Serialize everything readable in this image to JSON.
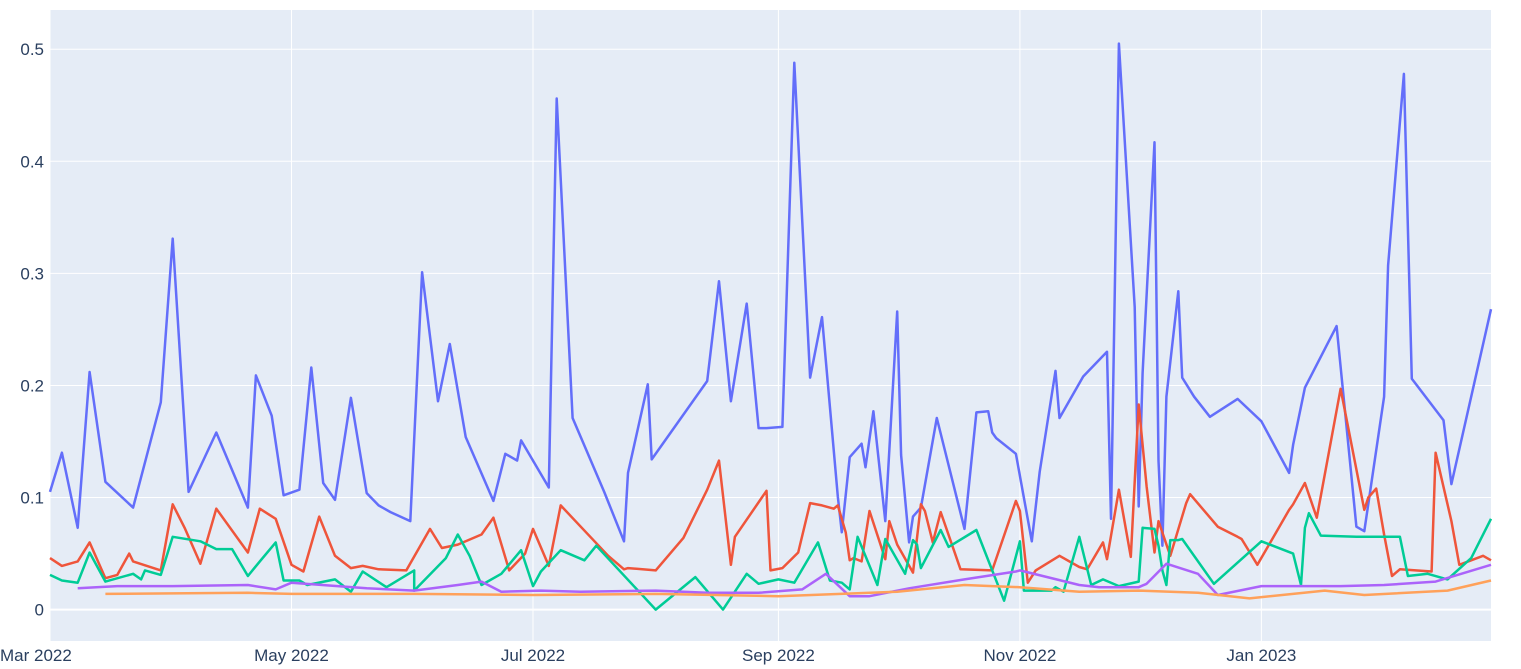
{
  "chart_data": {
    "type": "line",
    "title": "",
    "xlabel": "",
    "ylabel": "",
    "xlim": [
      "2022-03-01",
      "2023-02-28"
    ],
    "ylim": [
      -0.028,
      0.535
    ],
    "grid": true,
    "background": "#e5ecf6",
    "x_ticks": [
      "2022-03-01",
      "2022-05-01",
      "2022-07-01",
      "2022-09-01",
      "2022-11-01",
      "2023-01-01"
    ],
    "x_tick_labels": [
      "Mar 2022",
      "May 2022",
      "Jul 2022",
      "Sep 2022",
      "Nov 2022",
      "Jan 2023"
    ],
    "y_ticks": [
      0,
      0.1,
      0.2,
      0.3,
      0.4,
      0.5
    ],
    "y_tick_labels": [
      "0",
      "0.1",
      "0.2",
      "0.3",
      "0.4",
      "0.5"
    ],
    "series": [
      {
        "color": "#636efa",
        "x": [
          "2022-03-01",
          "2022-03-04",
          "2022-03-08",
          "2022-03-11",
          "2022-03-15",
          "2022-03-22",
          "2022-03-29",
          "2022-04-01",
          "2022-04-05",
          "2022-04-12",
          "2022-04-20",
          "2022-04-22",
          "2022-04-26",
          "2022-04-29",
          "2022-05-03",
          "2022-05-06",
          "2022-05-09",
          "2022-05-12",
          "2022-05-16",
          "2022-05-20",
          "2022-05-23",
          "2022-05-26",
          "2022-05-31",
          "2022-06-03",
          "2022-06-07",
          "2022-06-10",
          "2022-06-14",
          "2022-06-21",
          "2022-06-24",
          "2022-06-27",
          "2022-06-28",
          "2022-07-05",
          "2022-07-07",
          "2022-07-11",
          "2022-07-19",
          "2022-07-24",
          "2022-07-25",
          "2022-07-30",
          "2022-07-31",
          "2022-08-14",
          "2022-08-17",
          "2022-08-20",
          "2022-08-24",
          "2022-08-27",
          "2022-08-29",
          "2022-09-02",
          "2022-09-05",
          "2022-09-09",
          "2022-09-12",
          "2022-09-16",
          "2022-09-17",
          "2022-09-19",
          "2022-09-22",
          "2022-09-23",
          "2022-09-25",
          "2022-09-28",
          "2022-10-01",
          "2022-10-02",
          "2022-10-04",
          "2022-10-05",
          "2022-10-07",
          "2022-10-11",
          "2022-10-18",
          "2022-10-21",
          "2022-10-24",
          "2022-10-25",
          "2022-10-26",
          "2022-10-31",
          "2022-11-04",
          "2022-11-06",
          "2022-11-10",
          "2022-11-11",
          "2022-11-17",
          "2022-11-23",
          "2022-11-24",
          "2022-11-26",
          "2022-11-30",
          "2022-12-01",
          "2022-12-02",
          "2022-12-05",
          "2022-12-06",
          "2022-12-07",
          "2022-12-08",
          "2022-12-11",
          "2022-12-12",
          "2022-12-15",
          "2022-12-19",
          "2022-12-26",
          "2023-01-01",
          "2023-01-08",
          "2023-01-09",
          "2023-01-12",
          "2023-01-20",
          "2023-01-25",
          "2023-01-27",
          "2023-02-01",
          "2023-02-02",
          "2023-02-06",
          "2023-02-08",
          "2023-02-16",
          "2023-02-18",
          "2023-02-28"
        ],
        "y": [
          0.105,
          0.14,
          0.073,
          0.212,
          0.114,
          0.091,
          0.185,
          0.331,
          0.105,
          0.158,
          0.091,
          0.209,
          0.173,
          0.102,
          0.107,
          0.216,
          0.113,
          0.098,
          0.189,
          0.104,
          0.093,
          0.087,
          0.079,
          0.301,
          0.186,
          0.237,
          0.154,
          0.097,
          0.139,
          0.133,
          0.151,
          0.109,
          0.456,
          0.171,
          0.105,
          0.061,
          0.122,
          0.201,
          0.134,
          0.204,
          0.293,
          0.186,
          0.273,
          0.162,
          0.162,
          0.163,
          0.488,
          0.207,
          0.261,
          0.101,
          0.069,
          0.136,
          0.148,
          0.127,
          0.177,
          0.079,
          0.266,
          0.138,
          0.06,
          0.083,
          0.091,
          0.171,
          0.072,
          0.176,
          0.177,
          0.158,
          0.153,
          0.139,
          0.061,
          0.123,
          0.213,
          0.171,
          0.208,
          0.23,
          0.081,
          0.505,
          0.27,
          0.092,
          0.211,
          0.417,
          0.133,
          0.057,
          0.19,
          0.284,
          0.207,
          0.19,
          0.172,
          0.188,
          0.168,
          0.122,
          0.147,
          0.198,
          0.253,
          0.074,
          0.07,
          0.19,
          0.307,
          0.478,
          0.206,
          0.169,
          0.112,
          0.268
        ]
      },
      {
        "color": "#ef553b",
        "x": [
          "2022-03-01",
          "2022-03-04",
          "2022-03-08",
          "2022-03-11",
          "2022-03-15",
          "2022-03-18",
          "2022-03-21",
          "2022-03-22",
          "2022-03-29",
          "2022-04-01",
          "2022-04-04",
          "2022-04-08",
          "2022-04-12",
          "2022-04-20",
          "2022-04-23",
          "2022-04-27",
          "2022-05-01",
          "2022-05-04",
          "2022-05-08",
          "2022-05-12",
          "2022-05-16",
          "2022-05-19",
          "2022-05-23",
          "2022-05-30",
          "2022-06-05",
          "2022-06-08",
          "2022-06-12",
          "2022-06-18",
          "2022-06-21",
          "2022-06-25",
          "2022-06-29",
          "2022-07-01",
          "2022-07-05",
          "2022-07-08",
          "2022-07-12",
          "2022-07-20",
          "2022-07-24",
          "2022-07-25",
          "2022-08-01",
          "2022-08-08",
          "2022-08-14",
          "2022-08-17",
          "2022-08-20",
          "2022-08-21",
          "2022-08-29",
          "2022-08-30",
          "2022-09-02",
          "2022-09-06",
          "2022-09-09",
          "2022-09-12",
          "2022-09-15",
          "2022-09-16",
          "2022-09-18",
          "2022-09-19",
          "2022-09-20",
          "2022-09-22",
          "2022-09-24",
          "2022-09-28",
          "2022-09-29",
          "2022-10-01",
          "2022-10-05",
          "2022-10-07",
          "2022-10-08",
          "2022-10-10",
          "2022-10-12",
          "2022-10-17",
          "2022-10-25",
          "2022-10-31",
          "2022-11-01",
          "2022-11-02",
          "2022-11-03",
          "2022-11-05",
          "2022-11-11",
          "2022-11-16",
          "2022-11-18",
          "2022-11-22",
          "2022-11-23",
          "2022-11-26",
          "2022-11-29",
          "2022-12-01",
          "2022-12-03",
          "2022-12-05",
          "2022-12-06",
          "2022-12-09",
          "2022-12-13",
          "2022-12-14",
          "2022-12-21",
          "2022-12-26",
          "2022-12-27",
          "2022-12-31",
          "2023-01-08",
          "2023-01-09",
          "2023-01-12",
          "2023-01-15",
          "2023-01-21",
          "2023-01-27",
          "2023-01-28",
          "2023-01-30",
          "2023-02-01",
          "2023-02-03",
          "2023-02-05",
          "2023-02-13",
          "2023-02-14",
          "2023-02-18",
          "2023-02-20",
          "2023-02-26",
          "2023-02-28"
        ],
        "y": [
          0.046,
          0.039,
          0.043,
          0.06,
          0.028,
          0.031,
          0.05,
          0.043,
          0.035,
          0.094,
          0.073,
          0.041,
          0.09,
          0.051,
          0.09,
          0.081,
          0.04,
          0.034,
          0.083,
          0.048,
          0.037,
          0.039,
          0.036,
          0.035,
          0.072,
          0.055,
          0.058,
          0.067,
          0.082,
          0.035,
          0.05,
          0.072,
          0.039,
          0.093,
          0.078,
          0.048,
          0.036,
          0.037,
          0.035,
          0.064,
          0.107,
          0.133,
          0.04,
          0.065,
          0.106,
          0.035,
          0.037,
          0.051,
          0.095,
          0.093,
          0.09,
          0.093,
          0.069,
          0.044,
          0.046,
          0.043,
          0.088,
          0.045,
          0.079,
          0.058,
          0.033,
          0.094,
          0.088,
          0.06,
          0.087,
          0.036,
          0.035,
          0.097,
          0.088,
          0.056,
          0.024,
          0.035,
          0.048,
          0.038,
          0.036,
          0.06,
          0.045,
          0.107,
          0.047,
          0.183,
          0.11,
          0.051,
          0.079,
          0.048,
          0.095,
          0.103,
          0.074,
          0.065,
          0.063,
          0.04,
          0.089,
          0.094,
          0.113,
          0.082,
          0.197,
          0.089,
          0.1,
          0.108,
          0.067,
          0.03,
          0.036,
          0.034,
          0.14,
          0.079,
          0.04,
          0.048,
          0.044
        ]
      },
      {
        "color": "#00cc96",
        "x": [
          "2022-03-01",
          "2022-03-04",
          "2022-03-08",
          "2022-03-11",
          "2022-03-15",
          "2022-03-22",
          "2022-03-24",
          "2022-03-25",
          "2022-03-29",
          "2022-04-01",
          "2022-04-08",
          "2022-04-12",
          "2022-04-16",
          "2022-04-20",
          "2022-04-23",
          "2022-04-27",
          "2022-04-29",
          "2022-05-03",
          "2022-05-05",
          "2022-05-12",
          "2022-05-16",
          "2022-05-19",
          "2022-05-25",
          "2022-06-01",
          "2022-06-01",
          "2022-06-09",
          "2022-06-12",
          "2022-06-15",
          "2022-06-18",
          "2022-06-23",
          "2022-06-28",
          "2022-07-01",
          "2022-07-03",
          "2022-07-08",
          "2022-07-14",
          "2022-07-17",
          "2022-08-01",
          "2022-08-11",
          "2022-08-18",
          "2022-08-24",
          "2022-08-27",
          "2022-09-01",
          "2022-09-05",
          "2022-09-11",
          "2022-09-14",
          "2022-09-17",
          "2022-09-19",
          "2022-09-21",
          "2022-09-26",
          "2022-09-28",
          "2022-10-03",
          "2022-10-05",
          "2022-10-06",
          "2022-10-07",
          "2022-10-12",
          "2022-10-14",
          "2022-10-21",
          "2022-10-28",
          "2022-11-01",
          "2022-11-02",
          "2022-11-05",
          "2022-11-09",
          "2022-11-10",
          "2022-11-12",
          "2022-11-16",
          "2022-11-19",
          "2022-11-22",
          "2022-11-26",
          "2022-12-01",
          "2022-12-02",
          "2022-12-05",
          "2022-12-06",
          "2022-12-07",
          "2022-12-08",
          "2022-12-09",
          "2022-12-11",
          "2022-12-12",
          "2022-12-20",
          "2023-01-01",
          "2023-01-09",
          "2023-01-11",
          "2023-01-12",
          "2023-01-13",
          "2023-01-16",
          "2023-01-25",
          "2023-02-05",
          "2023-02-07",
          "2023-02-12",
          "2023-02-17",
          "2023-02-23",
          "2023-02-28"
        ],
        "y": [
          0.031,
          0.026,
          0.024,
          0.051,
          0.025,
          0.032,
          0.027,
          0.035,
          0.031,
          0.065,
          0.061,
          0.054,
          0.054,
          0.03,
          0.043,
          0.06,
          0.026,
          0.026,
          0.022,
          0.027,
          0.016,
          0.034,
          0.02,
          0.035,
          0.017,
          0.046,
          0.067,
          0.048,
          0.022,
          0.032,
          0.053,
          0.021,
          0.034,
          0.053,
          0.044,
          0.057,
          0.0,
          0.029,
          0.0,
          0.032,
          0.023,
          0.027,
          0.024,
          0.06,
          0.026,
          0.024,
          0.018,
          0.065,
          0.022,
          0.063,
          0.032,
          0.062,
          0.058,
          0.037,
          0.071,
          0.056,
          0.071,
          0.008,
          0.061,
          0.017,
          0.017,
          0.017,
          0.02,
          0.016,
          0.065,
          0.022,
          0.027,
          0.021,
          0.025,
          0.073,
          0.072,
          0.057,
          0.035,
          0.022,
          0.062,
          0.062,
          0.063,
          0.023,
          0.061,
          0.05,
          0.022,
          0.073,
          0.086,
          0.066,
          0.065,
          0.065,
          0.03,
          0.032,
          0.027,
          0.046,
          0.081
        ]
      },
      {
        "color": "#ab63fa",
        "x": [
          "2022-03-08",
          "2022-03-18",
          "2022-04-01",
          "2022-04-20",
          "2022-04-27",
          "2022-05-01",
          "2022-05-20",
          "2022-06-01",
          "2022-06-12",
          "2022-06-18",
          "2022-06-23",
          "2022-07-03",
          "2022-07-13",
          "2022-08-01",
          "2022-08-14",
          "2022-08-27",
          "2022-09-07",
          "2022-09-13",
          "2022-09-19",
          "2022-09-24",
          "2022-10-04",
          "2022-10-18",
          "2022-10-31",
          "2022-11-01",
          "2022-11-16",
          "2022-11-21",
          "2022-12-01",
          "2022-12-03",
          "2022-12-08",
          "2022-12-16",
          "2022-12-21",
          "2023-01-01",
          "2023-01-21",
          "2023-02-01",
          "2023-02-14",
          "2023-02-28"
        ],
        "y": [
          0.019,
          0.021,
          0.021,
          0.022,
          0.018,
          0.024,
          0.019,
          0.017,
          0.022,
          0.025,
          0.016,
          0.017,
          0.016,
          0.017,
          0.015,
          0.015,
          0.018,
          0.032,
          0.012,
          0.012,
          0.019,
          0.027,
          0.034,
          0.035,
          0.022,
          0.02,
          0.02,
          0.023,
          0.041,
          0.032,
          0.013,
          0.021,
          0.021,
          0.022,
          0.025,
          0.04
        ]
      },
      {
        "color": "#ffa15a",
        "x": [
          "2022-03-15",
          "2022-04-20",
          "2022-05-01",
          "2022-06-01",
          "2022-07-01",
          "2022-08-01",
          "2022-09-01",
          "2022-10-01",
          "2022-10-18",
          "2022-11-01",
          "2022-11-16",
          "2022-12-01",
          "2022-12-16",
          "2022-12-29",
          "2023-01-17",
          "2023-01-27",
          "2023-02-17",
          "2023-02-28"
        ],
        "y": [
          0.014,
          0.015,
          0.014,
          0.014,
          0.013,
          0.014,
          0.012,
          0.016,
          0.022,
          0.02,
          0.016,
          0.017,
          0.015,
          0.01,
          0.017,
          0.013,
          0.017,
          0.026
        ]
      }
    ]
  }
}
